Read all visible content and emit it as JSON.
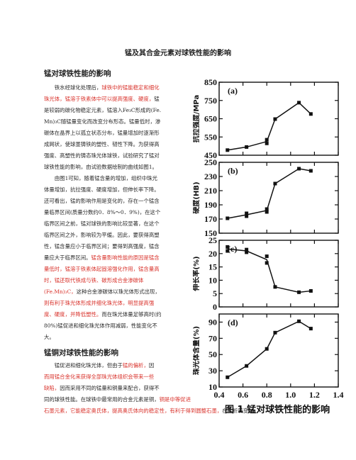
{
  "document": {
    "title": "锰及其合金元素对球铁性能的影响",
    "section1": {
      "heading": "锰对球铁性能的影响",
      "p1_lines": [
        {
          "segs": [
            {
              "t": "　　铁水经球化处理后，",
              "c": "black"
            },
            {
              "t": "球铁中的锰能稳定和细化",
              "c": "red"
            }
          ]
        },
        {
          "segs": [
            {
              "t": "珠光体，锰溶于铁素体中可以提高强度、硬度，",
              "c": "red"
            },
            {
              "t": "锰",
              "c": "black"
            }
          ]
        },
        {
          "segs": [
            {
              "t": "是较弱的碳化物稳定元素，锰溶入Fe₃C形成的(Fe.",
              "c": "black"
            }
          ]
        },
        {
          "segs": [
            {
              "t": "Mn)₃C随锰量变化而改变分布形态。锰量低时，渗",
              "c": "black"
            }
          ]
        },
        {
          "segs": [
            {
              "t": "碳体在晶界上以孤立状态分布，锰量增加时逐渐形",
              "c": "black"
            }
          ]
        },
        {
          "segs": [
            {
              "t": "成网状，使球墨铸铁的塑性、韧性下降。为获得高",
              "c": "black"
            }
          ]
        },
        {
          "segs": [
            {
              "t": "强度、高塑性的铸态珠光体球铁，试验研究了锰对",
              "c": "black"
            }
          ]
        },
        {
          "segs": [
            {
              "t": "球铁性能的影响，由试验数据绘制的曲线如图1。",
              "c": "black"
            }
          ]
        }
      ],
      "p2_lines": [
        {
          "segs": [
            {
              "t": "　　由图1可知，随着锰含量的增加，组织中珠光",
              "c": "black"
            }
          ]
        },
        {
          "segs": [
            {
              "t": "体量增加，抗拉强度、硬度增加，但伸长率下降。",
              "c": "black"
            }
          ]
        },
        {
          "segs": [
            {
              "t": "还可看出，锰的影响作用是变化的，存在一个锰含",
              "c": "black"
            }
          ]
        },
        {
          "segs": [
            {
              "t": "量临界区间(质量分数约0．8%～0．9%)，在这个",
              "c": "black"
            }
          ]
        },
        {
          "segs": [
            {
              "t": "临界区间之前，锰对球铁的影响比较显著，在这个",
              "c": "black"
            }
          ]
        },
        {
          "segs": [
            {
              "t": "临界区间之外，影响较为平缓。因此，要获得高塑",
              "c": "black"
            }
          ]
        },
        {
          "segs": [
            {
              "t": "性，锰含量应小于临界区间；要得到高强度，锰含",
              "c": "black"
            }
          ]
        },
        {
          "segs": [
            {
              "t": "量应大于临界区间。",
              "c": "black"
            },
            {
              "t": "锰含量影响性能的原因是锰含",
              "c": "red"
            }
          ]
        },
        {
          "segs": [
            {
              "t": "量低时，锰溶于铁素体起固溶强化作用，锰含量高",
              "c": "red"
            }
          ]
        },
        {
          "segs": [
            {
              "t": "时，锰还取代铁成与铁、碳形成合金渗碳体",
              "c": "red"
            }
          ]
        },
        {
          "segs": [
            {
              "t": "(Fe.Mn)₃C，",
              "c": "red"
            },
            {
              "t": "这种合金渗碳体以珠光体形式出现，",
              "c": "black"
            }
          ]
        },
        {
          "segs": [
            {
              "t": "则有利于珠光体形成并细化珠光体，明显提高强",
              "c": "red"
            }
          ]
        },
        {
          "segs": [
            {
              "t": "度、硬度，并降低塑性。",
              "c": "red"
            },
            {
              "t": "而在珠光体量足够高时(约",
              "c": "black"
            }
          ]
        },
        {
          "segs": [
            {
              "t": "80%)锰促进和细化珠光体作用减弱，性能变化不",
              "c": "black"
            }
          ]
        },
        {
          "segs": [
            {
              "t": "大。",
              "c": "black"
            }
          ]
        }
      ]
    },
    "section2": {
      "heading": "锰铜对球铁性能的影响",
      "p1_lines": [
        {
          "segs": [
            {
              "t": "　　锰促进和细化珠光体，但由于",
              "c": "black"
            },
            {
              "t": "锰的偏析，",
              "c": "red"
            },
            {
              "t": "因",
              "c": "black"
            }
          ]
        },
        {
          "segs": [
            {
              "t": "而用锰合金化来获得全部珠光体组织会带来一些",
              "c": "red"
            }
          ]
        },
        {
          "segs": [
            {
              "t": "缺陷，",
              "c": "red"
            },
            {
              "t": "因而采用不同的锰量和铜量来配合，获得不",
              "c": "black"
            }
          ]
        },
        {
          "segs": [
            {
              "t": "同的球铁性能。在球铁中最常用的合金元素是铜，",
              "c": "black"
            },
            {
              "t": "铜是中等促进",
              "c": "red"
            }
          ]
        },
        {
          "segs": [
            {
              "t": "石墨元素，它能稳定奥氏体，提高奥氏体向的稳定性，有利于得到圆整石墨，",
              "c": "red"
            },
            {
              "t": "在共析转变时，",
              "c": "black"
            }
          ]
        }
      ]
    }
  },
  "figure": {
    "caption": "图 1  锰对球铁性能的影响",
    "x_ticks": [
      "0.4",
      "0.6",
      "0.8",
      "1.0",
      "1.2",
      "1.4"
    ],
    "panels": [
      {
        "letter": "(a)",
        "ylabel": "抗拉强度/MPa",
        "ticks": [
          "450",
          "550",
          "650",
          "750",
          "850"
        ]
      },
      {
        "letter": "(b)",
        "ylabel": "硬度(HB)",
        "ticks": [
          "150",
          "170",
          "190",
          "210",
          "230",
          "250"
        ]
      },
      {
        "letter": "(c)",
        "ylabel": "伸长率(%)",
        "ticks": [
          "0",
          "5",
          "10",
          "15",
          "20",
          "25"
        ]
      },
      {
        "letter": "(d)",
        "ylabel": "珠光体含量(%)",
        "ticks": [
          "10",
          "30",
          "50",
          "70",
          "90"
        ]
      }
    ]
  },
  "chart_data": [
    {
      "type": "line",
      "title": "(a)",
      "xlabel": "",
      "ylabel": "抗拉强度/MPa",
      "xlim": [
        0.4,
        1.4
      ],
      "ylim": [
        450,
        850
      ],
      "x": [
        0.47,
        0.63,
        0.8,
        0.8,
        0.87,
        1.07,
        1.17
      ],
      "values": [
        478,
        495,
        515,
        535,
        648,
        738,
        676
      ]
    },
    {
      "type": "line",
      "title": "(b)",
      "xlabel": "",
      "ylabel": "硬度(HB)",
      "xlim": [
        0.4,
        1.4
      ],
      "ylim": [
        150,
        250
      ],
      "x": [
        0.47,
        0.63,
        0.63,
        0.8,
        0.8,
        0.87,
        1.07,
        1.17
      ],
      "values": [
        171,
        174,
        178,
        180,
        184,
        220,
        241,
        238
      ]
    },
    {
      "type": "line",
      "title": "(c)",
      "xlabel": "",
      "ylabel": "伸长率(%)",
      "xlim": [
        0.4,
        1.4
      ],
      "ylim": [
        0,
        25
      ],
      "x": [
        0.47,
        0.47,
        0.63,
        0.63,
        0.8,
        0.8,
        0.87,
        1.07,
        1.17
      ],
      "values": [
        21,
        22.5,
        20.5,
        21.5,
        16.5,
        19,
        7.5,
        5.5,
        6
      ]
    },
    {
      "type": "line",
      "title": "(d)",
      "xlabel": "",
      "ylabel": "珠光体含量(%)",
      "xlim": [
        0.4,
        1.4
      ],
      "ylim": [
        10,
        100
      ],
      "x": [
        0.47,
        0.63,
        0.8,
        0.87,
        1.07,
        1.17
      ],
      "values": [
        22,
        36,
        57,
        77,
        91,
        82
      ]
    }
  ]
}
